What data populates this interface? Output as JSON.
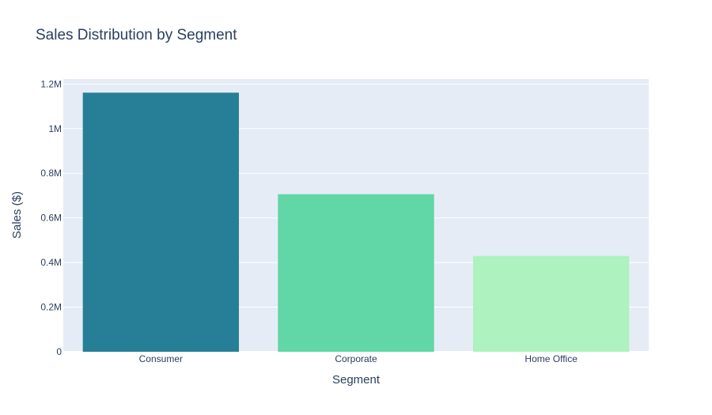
{
  "chart_data": {
    "type": "bar",
    "title": "Sales Distribution by Segment",
    "xlabel": "Segment",
    "ylabel": "Sales ($)",
    "categories": [
      "Consumer",
      "Corporate",
      "Home Office"
    ],
    "values": [
      1161401,
      706146,
      429653
    ],
    "ylim": [
      0,
      1222527
    ],
    "yticks": [
      {
        "value": 0,
        "label": "0"
      },
      {
        "value": 200000,
        "label": "0.2M"
      },
      {
        "value": 400000,
        "label": "0.4M"
      },
      {
        "value": 600000,
        "label": "0.6M"
      },
      {
        "value": 800000,
        "label": "0.8M"
      },
      {
        "value": 1000000,
        "label": "1M"
      },
      {
        "value": 1200000,
        "label": "1.2M"
      }
    ],
    "colors": [
      "#277f97",
      "#61d6a6",
      "#aef2bf"
    ],
    "plot_background": "#e5ecf6",
    "grid": true,
    "legend": "none"
  }
}
